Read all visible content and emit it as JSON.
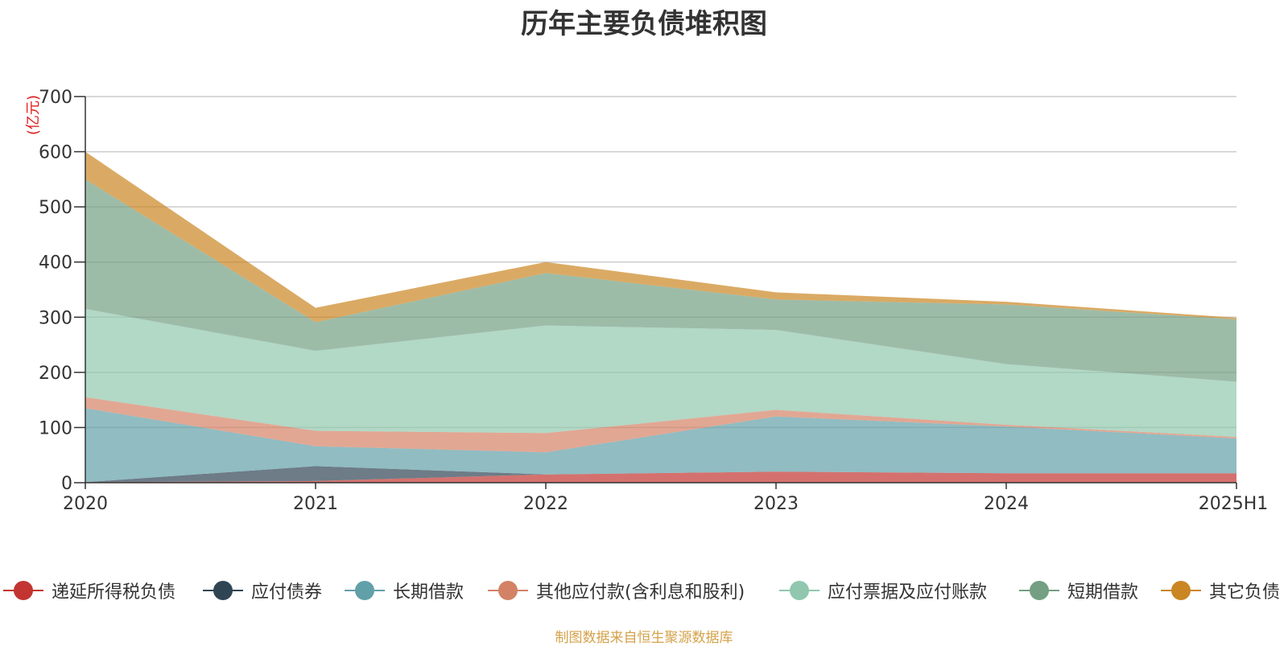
{
  "chart_data": {
    "type": "area",
    "stacked": true,
    "title": "历年主要负债堆积图",
    "ylabel": "(亿元)",
    "xlabel": "",
    "categories": [
      "2020",
      "2021",
      "2022",
      "2023",
      "2024",
      "2025H1"
    ],
    "ylim": [
      0,
      700
    ],
    "yticks": [
      0,
      100,
      200,
      300,
      400,
      500,
      600,
      700
    ],
    "grid": true,
    "legend_position": "bottom",
    "series": [
      {
        "name": "递延所得税负债",
        "color": "#c23531",
        "values": [
          1,
          3,
          15,
          20,
          17,
          17
        ]
      },
      {
        "name": "应付债券",
        "color": "#2f4554",
        "values": [
          0,
          27,
          0,
          0,
          0,
          0
        ]
      },
      {
        "name": "长期借款",
        "color": "#61a0a8",
        "values": [
          134,
          36,
          40,
          100,
          85,
          63
        ]
      },
      {
        "name": "其他应付款(含利息和股利)",
        "color": "#d48265",
        "values": [
          20,
          28,
          35,
          12,
          3,
          3
        ]
      },
      {
        "name": "应付票据及应付账款",
        "color": "#91c7ae",
        "values": [
          160,
          145,
          195,
          145,
          110,
          100
        ]
      },
      {
        "name": "短期借款",
        "color": "#749f83",
        "values": [
          235,
          52,
          95,
          55,
          108,
          113
        ]
      },
      {
        "name": "其它负债",
        "color": "#ca8622",
        "values": [
          50,
          26,
          20,
          13,
          5,
          3
        ]
      }
    ]
  },
  "source_note": "制图数据来自恒生聚源数据库"
}
